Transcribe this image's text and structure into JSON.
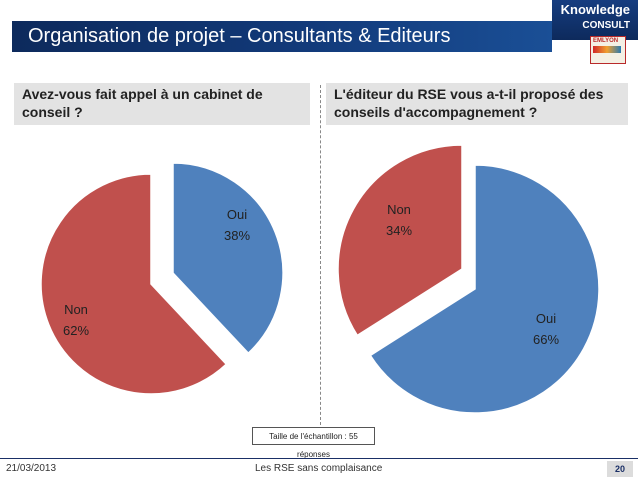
{
  "header": {
    "title": "Organisation de projet – Consultants & Editeurs",
    "logo_line1": "Knowledge",
    "logo_line2": "CONSULT",
    "badge_text": "EMLYON"
  },
  "colors": {
    "oui": "#4f81bd",
    "non": "#c0504d",
    "title_bar": "#0d2a5c"
  },
  "chart_data": [
    {
      "type": "pie",
      "title": "Avez-vous fait appel à un cabinet de conseil ?",
      "slices": [
        {
          "label": "Oui",
          "value": 38,
          "display": "38%"
        },
        {
          "label": "Non",
          "value": 62,
          "display": "62%"
        }
      ]
    },
    {
      "type": "pie",
      "title": "L'éditeur du RSE vous a-t-il proposé des conseils d'accompagnement ?",
      "slices": [
        {
          "label": "Oui",
          "value": 66,
          "display": "66%"
        },
        {
          "label": "Non",
          "value": 34,
          "display": "34%"
        }
      ]
    }
  ],
  "sample_note": "Taille de l'échantillon : 55 réponses",
  "footer": {
    "date": "21/03/2013",
    "center": "Les RSE sans complaisance",
    "page": "20"
  }
}
